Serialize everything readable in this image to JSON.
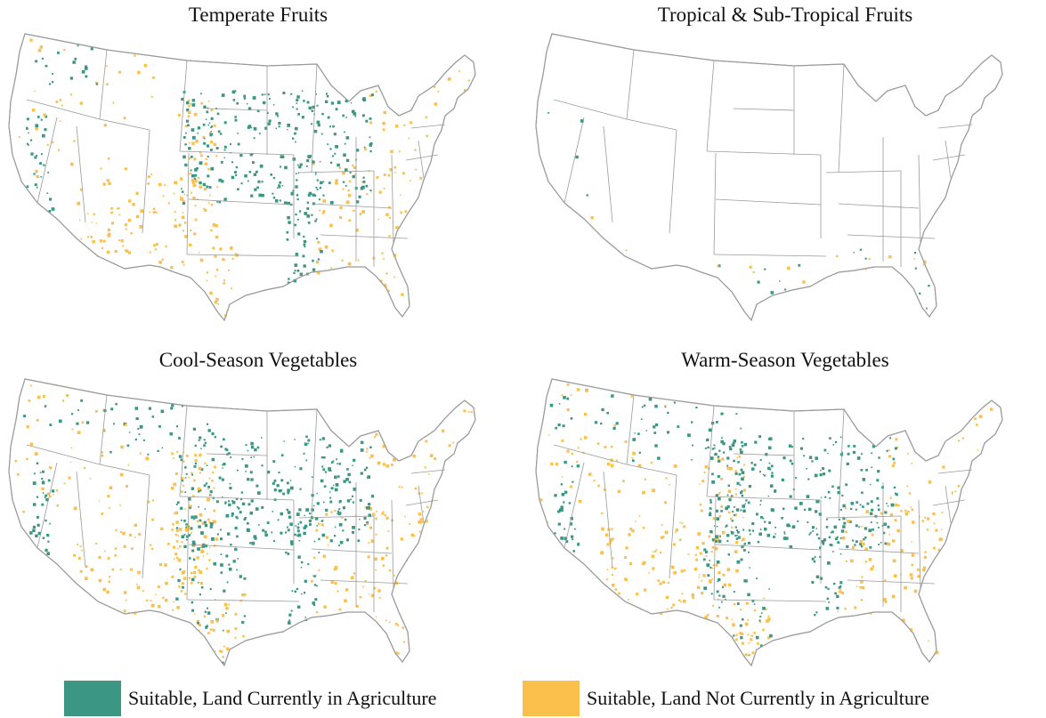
{
  "colors": {
    "agriculture": "#3b9683",
    "not_agriculture": "#fbbf4c",
    "borders": "#9a9a9a"
  },
  "panels": [
    {
      "title": "Temperate Fruits",
      "coverage": {
        "agriculture": 0.55,
        "not_agriculture": 0.55
      }
    },
    {
      "title": "Tropical & Sub-Tropical Fruits",
      "coverage": {
        "agriculture": 0.08,
        "not_agriculture": 0.08
      }
    },
    {
      "title": "Cool-Season Vegetables",
      "coverage": {
        "agriculture": 0.6,
        "not_agriculture": 0.6
      }
    },
    {
      "title": "Warm-Season Vegetables",
      "coverage": {
        "agriculture": 0.6,
        "not_agriculture": 0.6
      }
    }
  ],
  "legend": {
    "items": [
      {
        "label": "Suitable, Land Currently in Agriculture",
        "color_key": "agriculture"
      },
      {
        "label": "Suitable, Land Not Currently in Agriculture",
        "color_key": "not_agriculture"
      }
    ]
  }
}
